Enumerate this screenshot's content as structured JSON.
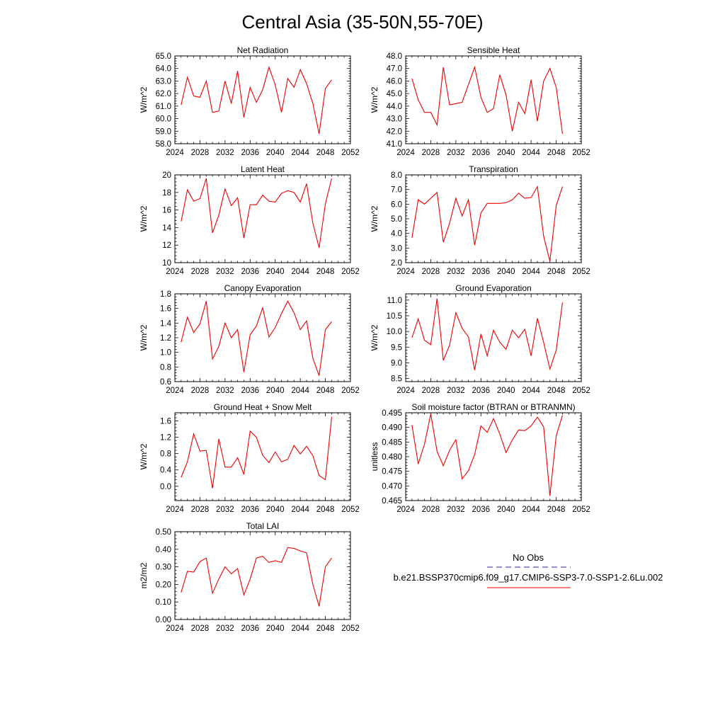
{
  "figure_title": "Central Asia (35-50N,55-70E)",
  "legend": {
    "entries": [
      {
        "label": "No Obs",
        "color": "#4f4fb0",
        "dash": true
      },
      {
        "label": "b.e21.BSSP370cmip6.f09_g17.CMIP6-SSP3-7.0-SSP1-2.6Lu.002",
        "color": "#ee3333",
        "dash": false
      }
    ]
  },
  "chart_data": [
    {
      "type": "line",
      "title": "Net Radiation",
      "ylabel": "W/m^2",
      "xlim": [
        2024,
        2052
      ],
      "xticks": [
        2024,
        2028,
        2032,
        2036,
        2040,
        2044,
        2048,
        2052
      ],
      "ylim": [
        58.0,
        65.0
      ],
      "yticks": [
        58.0,
        59.0,
        60.0,
        61.0,
        62.0,
        63.0,
        64.0,
        65.0
      ],
      "ytick_decimals": 1,
      "series": [
        {
          "color": "#ee0000",
          "x": [
            2025,
            2026,
            2027,
            2028,
            2029,
            2030,
            2031,
            2032,
            2033,
            2034,
            2035,
            2036,
            2037,
            2038,
            2039,
            2040,
            2041,
            2042,
            2043,
            2044,
            2045,
            2046,
            2047,
            2048,
            2049
          ],
          "y": [
            61.1,
            63.3,
            61.8,
            61.7,
            63.0,
            60.5,
            60.6,
            63.0,
            61.2,
            63.8,
            60.1,
            62.5,
            61.3,
            62.3,
            64.1,
            62.7,
            60.5,
            63.2,
            62.5,
            63.9,
            62.8,
            61.2,
            58.8,
            62.4,
            63.1
          ]
        }
      ]
    },
    {
      "type": "line",
      "title": "Sensible Heat",
      "ylabel": "W/m^2",
      "xlim": [
        2024,
        2052
      ],
      "xticks": [
        2024,
        2028,
        2032,
        2036,
        2040,
        2044,
        2048,
        2052
      ],
      "ylim": [
        41.0,
        48.0
      ],
      "yticks": [
        41.0,
        42.0,
        43.0,
        44.0,
        45.0,
        46.0,
        47.0,
        48.0
      ],
      "ytick_decimals": 1,
      "series": [
        {
          "color": "#ee0000",
          "x": [
            2025,
            2026,
            2027,
            2028,
            2029,
            2030,
            2031,
            2032,
            2033,
            2034,
            2035,
            2036,
            2037,
            2038,
            2039,
            2040,
            2041,
            2042,
            2043,
            2044,
            2045,
            2046,
            2047,
            2048,
            2049
          ],
          "y": [
            46.2,
            44.5,
            43.5,
            43.5,
            42.5,
            47.1,
            44.1,
            44.2,
            44.3,
            45.7,
            47.1,
            44.7,
            43.5,
            43.8,
            46.5,
            44.9,
            42.0,
            44.3,
            43.4,
            46.1,
            42.8,
            46.0,
            47.0,
            45.5,
            41.8
          ]
        }
      ]
    },
    {
      "type": "line",
      "title": "Latent Heat",
      "ylabel": "W/m^2",
      "xlim": [
        2024,
        2052
      ],
      "xticks": [
        2024,
        2028,
        2032,
        2036,
        2040,
        2044,
        2048,
        2052
      ],
      "ylim": [
        10,
        20
      ],
      "yticks": [
        10,
        12,
        14,
        16,
        18,
        20
      ],
      "ytick_decimals": 0,
      "series": [
        {
          "color": "#ee0000",
          "x": [
            2025,
            2026,
            2027,
            2028,
            2029,
            2030,
            2031,
            2032,
            2033,
            2034,
            2035,
            2036,
            2037,
            2038,
            2039,
            2040,
            2041,
            2042,
            2043,
            2044,
            2045,
            2046,
            2047,
            2048,
            2049
          ],
          "y": [
            14.7,
            18.3,
            17.0,
            17.3,
            19.6,
            13.4,
            15.4,
            18.4,
            16.5,
            17.4,
            12.8,
            16.6,
            16.6,
            17.7,
            17.0,
            16.9,
            17.9,
            18.2,
            18.0,
            16.9,
            19.0,
            14.5,
            11.7,
            16.7,
            19.6
          ]
        }
      ]
    },
    {
      "type": "line",
      "title": "Transpiration",
      "ylabel": "W/m^2",
      "xlim": [
        2024,
        2052
      ],
      "xticks": [
        2024,
        2028,
        2032,
        2036,
        2040,
        2044,
        2048,
        2052
      ],
      "ylim": [
        2.0,
        8.0
      ],
      "yticks": [
        2.0,
        3.0,
        4.0,
        5.0,
        6.0,
        7.0,
        8.0
      ],
      "ytick_decimals": 1,
      "series": [
        {
          "color": "#ee0000",
          "x": [
            2025,
            2026,
            2027,
            2028,
            2029,
            2030,
            2031,
            2032,
            2033,
            2034,
            2035,
            2036,
            2037,
            2038,
            2039,
            2040,
            2041,
            2042,
            2043,
            2044,
            2045,
            2046,
            2047,
            2048,
            2049
          ],
          "y": [
            3.7,
            6.3,
            6.0,
            6.4,
            6.8,
            3.4,
            4.7,
            6.4,
            5.2,
            6.3,
            3.2,
            5.4,
            6.05,
            6.05,
            6.05,
            6.1,
            6.3,
            6.75,
            6.4,
            6.45,
            7.2,
            3.8,
            2.1,
            5.9,
            7.2
          ]
        }
      ]
    },
    {
      "type": "line",
      "title": "Canopy Evaporation",
      "ylabel": "W/m^2",
      "xlim": [
        2024,
        2052
      ],
      "xticks": [
        2024,
        2028,
        2032,
        2036,
        2040,
        2044,
        2048,
        2052
      ],
      "ylim": [
        0.6,
        1.8
      ],
      "yticks": [
        0.6,
        0.8,
        1.0,
        1.2,
        1.4,
        1.6,
        1.8
      ],
      "ytick_decimals": 1,
      "series": [
        {
          "color": "#ee0000",
          "x": [
            2025,
            2026,
            2027,
            2028,
            2029,
            2030,
            2031,
            2032,
            2033,
            2034,
            2035,
            2036,
            2037,
            2038,
            2039,
            2040,
            2041,
            2042,
            2043,
            2044,
            2045,
            2046,
            2047,
            2048,
            2049
          ],
          "y": [
            1.14,
            1.48,
            1.27,
            1.39,
            1.7,
            0.91,
            1.08,
            1.4,
            1.2,
            1.31,
            0.73,
            1.24,
            1.36,
            1.61,
            1.21,
            1.34,
            1.53,
            1.7,
            1.54,
            1.31,
            1.43,
            0.92,
            0.68,
            1.31,
            1.42
          ]
        }
      ]
    },
    {
      "type": "line",
      "title": "Ground Evaporation",
      "ylabel": "W/m^2",
      "xlim": [
        2024,
        2052
      ],
      "xticks": [
        2024,
        2028,
        2032,
        2036,
        2040,
        2044,
        2048,
        2052
      ],
      "ylim": [
        8.4,
        11.2
      ],
      "yticks": [
        8.5,
        9.0,
        9.5,
        10.0,
        10.5,
        11.0
      ],
      "ytick_decimals": 1,
      "series": [
        {
          "color": "#ee0000",
          "x": [
            2025,
            2026,
            2027,
            2028,
            2029,
            2030,
            2031,
            2032,
            2033,
            2034,
            2035,
            2036,
            2037,
            2038,
            2039,
            2040,
            2041,
            2042,
            2043,
            2044,
            2045,
            2046,
            2047,
            2048,
            2049
          ],
          "y": [
            9.8,
            10.4,
            9.72,
            9.58,
            11.05,
            9.08,
            9.56,
            10.6,
            10.1,
            9.83,
            8.77,
            9.92,
            9.22,
            10.04,
            9.66,
            9.43,
            10.04,
            9.8,
            10.07,
            9.22,
            10.42,
            9.65,
            8.8,
            9.4,
            10.92
          ]
        }
      ]
    },
    {
      "type": "line",
      "title": "Ground Heat + Snow Melt",
      "ylabel": "W/m^2",
      "xlim": [
        2024,
        2052
      ],
      "xticks": [
        2024,
        2028,
        2032,
        2036,
        2040,
        2044,
        2048,
        2052
      ],
      "ylim": [
        -0.35,
        1.8
      ],
      "yticks": [
        0.0,
        0.4,
        0.8,
        1.2,
        1.6
      ],
      "ytick_decimals": 1,
      "series": [
        {
          "color": "#ee0000",
          "x": [
            2025,
            2026,
            2027,
            2028,
            2029,
            2030,
            2031,
            2032,
            2033,
            2034,
            2035,
            2036,
            2037,
            2038,
            2039,
            2040,
            2041,
            2042,
            2043,
            2044,
            2045,
            2046,
            2047,
            2048,
            2049
          ],
          "y": [
            0.22,
            0.6,
            1.28,
            0.86,
            0.88,
            -0.05,
            1.16,
            0.47,
            0.47,
            0.7,
            0.29,
            1.35,
            1.2,
            0.76,
            0.58,
            0.84,
            0.6,
            0.66,
            1.0,
            0.79,
            0.98,
            0.75,
            0.26,
            0.16,
            1.7
          ]
        }
      ]
    },
    {
      "type": "line",
      "title": "Soil moisture factor (BTRAN or BTRANMN)",
      "ylabel": "unitless",
      "xlim": [
        2024,
        2052
      ],
      "xticks": [
        2024,
        2028,
        2032,
        2036,
        2040,
        2044,
        2048,
        2052
      ],
      "ylim": [
        0.465,
        0.495
      ],
      "yticks": [
        0.465,
        0.47,
        0.475,
        0.48,
        0.485,
        0.49,
        0.495
      ],
      "ytick_decimals": 3,
      "series": [
        {
          "color": "#ee0000",
          "x": [
            2025,
            2026,
            2027,
            2028,
            2029,
            2030,
            2031,
            2032,
            2033,
            2034,
            2035,
            2036,
            2037,
            2038,
            2039,
            2040,
            2041,
            2042,
            2043,
            2044,
            2045,
            2046,
            2047,
            2048,
            2049
          ],
          "y": [
            0.4908,
            0.4775,
            0.4843,
            0.4946,
            0.4818,
            0.4769,
            0.4822,
            0.4858,
            0.4724,
            0.4752,
            0.4808,
            0.4905,
            0.4883,
            0.493,
            0.4878,
            0.4814,
            0.4857,
            0.4891,
            0.4889,
            0.4905,
            0.4935,
            0.4902,
            0.4666,
            0.4871,
            0.4941
          ]
        }
      ]
    },
    {
      "type": "line",
      "title": "Total LAI",
      "ylabel": "m2/m2",
      "xlim": [
        2024,
        2052
      ],
      "xticks": [
        2024,
        2028,
        2032,
        2036,
        2040,
        2044,
        2048,
        2052
      ],
      "ylim": [
        0.0,
        0.5
      ],
      "yticks": [
        0.0,
        0.1,
        0.2,
        0.3,
        0.4,
        0.5
      ],
      "ytick_decimals": 2,
      "series": [
        {
          "color": "#ee0000",
          "x": [
            2025,
            2026,
            2027,
            2028,
            2029,
            2030,
            2031,
            2032,
            2033,
            2034,
            2035,
            2036,
            2037,
            2038,
            2039,
            2040,
            2041,
            2042,
            2043,
            2044,
            2045,
            2046,
            2047,
            2048,
            2049
          ],
          "y": [
            0.155,
            0.275,
            0.27,
            0.33,
            0.35,
            0.15,
            0.23,
            0.3,
            0.26,
            0.29,
            0.14,
            0.23,
            0.35,
            0.36,
            0.325,
            0.335,
            0.325,
            0.41,
            0.405,
            0.39,
            0.38,
            0.2,
            0.075,
            0.3,
            0.35
          ]
        }
      ]
    }
  ]
}
